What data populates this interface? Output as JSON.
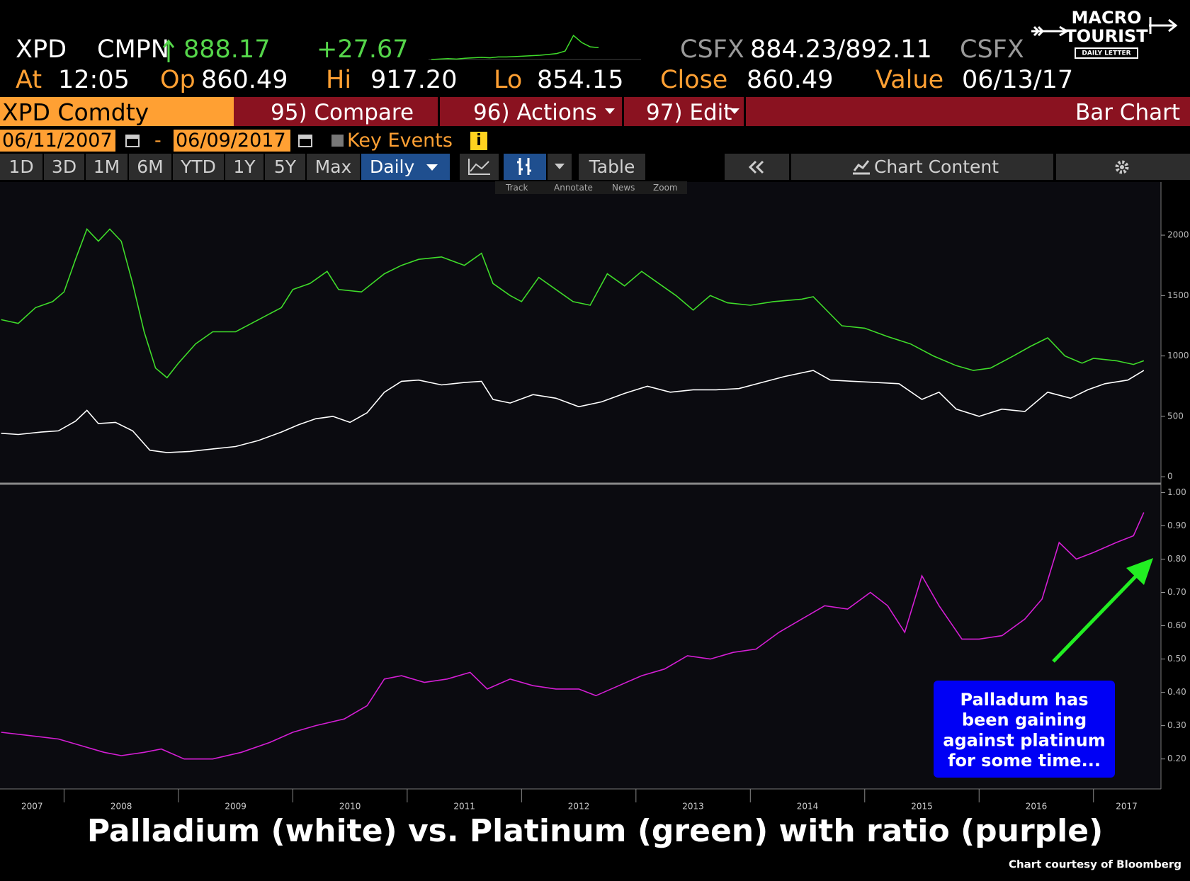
{
  "header": {
    "ticker": "XPD",
    "source": "CMPN",
    "last": "888.17",
    "change": "+27.67",
    "bid_source": "CSFX",
    "bid_ask": "884.23/892.11",
    "ask_source": "CSFX",
    "sparkline": [
      860,
      861,
      862,
      861,
      863,
      864,
      865,
      864,
      866,
      866,
      867,
      868,
      869,
      870,
      872,
      874,
      880,
      917,
      900,
      890,
      888
    ],
    "stats": [
      {
        "label": "At",
        "value": "12:05"
      },
      {
        "label": "Op",
        "value": "860.49"
      },
      {
        "label": "Hi",
        "value": "917.20"
      },
      {
        "label": "Lo",
        "value": "854.15"
      },
      {
        "label": "Close",
        "value": "860.49"
      },
      {
        "label": "Value",
        "value": "06/13/17"
      }
    ]
  },
  "logo": {
    "line1": "MACRO",
    "line2": "TOURIST",
    "tagline": "DAILY LETTER"
  },
  "menu": {
    "security": "XPD Comdty",
    "items": [
      "95) Compare",
      "96) Actions",
      "97) Edit"
    ],
    "chart_type": "Bar Chart"
  },
  "dates": {
    "start": "06/11/2007",
    "separator": "-",
    "end": "06/09/2017",
    "key_events": "Key Events",
    "info": "i"
  },
  "toolbar": {
    "ranges": [
      "1D",
      "3D",
      "1M",
      "6M",
      "YTD",
      "1Y",
      "5Y",
      "Max"
    ],
    "frequency": "Daily",
    "table": "Table",
    "chart_content": "Chart Content"
  },
  "tools": [
    "Track",
    "Annotate",
    "News",
    "Zoom"
  ],
  "chart_data": [
    {
      "type": "line",
      "xlim": [
        2007.44,
        2017.59
      ],
      "ylim": [
        -40,
        2440
      ],
      "yticks": [
        0,
        500,
        1000,
        1500,
        2000
      ],
      "series": [
        {
          "color": "#3fdc2a",
          "x": [
            2007.45,
            2007.6,
            2007.75,
            2007.9,
            2008.0,
            2008.1,
            2008.2,
            2008.3,
            2008.4,
            2008.5,
            2008.6,
            2008.7,
            2008.8,
            2008.9,
            2009.0,
            2009.15,
            2009.3,
            2009.5,
            2009.7,
            2009.9,
            2010.0,
            2010.15,
            2010.3,
            2010.4,
            2010.6,
            2010.8,
            2010.95,
            2011.1,
            2011.3,
            2011.5,
            2011.65,
            2011.75,
            2011.9,
            2012.0,
            2012.15,
            2012.3,
            2012.45,
            2012.6,
            2012.75,
            2012.9,
            2013.05,
            2013.2,
            2013.35,
            2013.5,
            2013.65,
            2013.8,
            2014.0,
            2014.2,
            2014.45,
            2014.55,
            2014.8,
            2015.0,
            2015.2,
            2015.4,
            2015.6,
            2015.8,
            2015.95,
            2016.1,
            2016.3,
            2016.45,
            2016.6,
            2016.75,
            2016.9,
            2017.0,
            2017.2,
            2017.35,
            2017.44
          ],
          "values": [
            1300,
            1270,
            1400,
            1450,
            1530,
            1800,
            2050,
            1950,
            2050,
            1950,
            1600,
            1200,
            900,
            820,
            940,
            1100,
            1200,
            1200,
            1300,
            1400,
            1550,
            1600,
            1700,
            1550,
            1530,
            1680,
            1750,
            1800,
            1820,
            1750,
            1850,
            1600,
            1500,
            1450,
            1650,
            1550,
            1450,
            1420,
            1680,
            1580,
            1700,
            1600,
            1500,
            1380,
            1500,
            1440,
            1420,
            1450,
            1470,
            1490,
            1250,
            1230,
            1160,
            1100,
            1000,
            920,
            880,
            900,
            1000,
            1080,
            1150,
            1000,
            940,
            980,
            960,
            930,
            960
          ]
        },
        {
          "color": "#ffffff",
          "x": [
            2007.45,
            2007.6,
            2007.8,
            2007.95,
            2008.1,
            2008.2,
            2008.3,
            2008.45,
            2008.6,
            2008.75,
            2008.9,
            2009.1,
            2009.3,
            2009.5,
            2009.7,
            2009.9,
            2010.05,
            2010.2,
            2010.35,
            2010.5,
            2010.65,
            2010.8,
            2010.95,
            2011.1,
            2011.3,
            2011.5,
            2011.65,
            2011.75,
            2011.9,
            2012.1,
            2012.3,
            2012.5,
            2012.7,
            2012.9,
            2013.1,
            2013.3,
            2013.5,
            2013.7,
            2013.9,
            2014.1,
            2014.3,
            2014.55,
            2014.7,
            2014.9,
            2015.1,
            2015.3,
            2015.5,
            2015.65,
            2015.8,
            2016.0,
            2016.2,
            2016.4,
            2016.6,
            2016.8,
            2016.95,
            2017.1,
            2017.3,
            2017.44
          ],
          "values": [
            360,
            350,
            370,
            380,
            460,
            550,
            440,
            450,
            380,
            220,
            200,
            210,
            230,
            250,
            300,
            370,
            430,
            480,
            500,
            450,
            530,
            700,
            790,
            800,
            760,
            780,
            790,
            640,
            610,
            680,
            650,
            580,
            620,
            690,
            750,
            700,
            720,
            720,
            730,
            780,
            830,
            880,
            800,
            790,
            780,
            770,
            640,
            700,
            560,
            500,
            560,
            540,
            700,
            650,
            720,
            770,
            800,
            880
          ]
        }
      ]
    },
    {
      "type": "line",
      "xlim": [
        2007.44,
        2017.59
      ],
      "ylim": [
        0.11,
        1.02
      ],
      "yticks": [
        {
          "value": 0.2,
          "label": "0.20"
        },
        {
          "value": 0.3,
          "label": "0.30"
        },
        {
          "value": 0.4,
          "label": "0.40"
        },
        {
          "value": 0.5,
          "label": "0.50"
        },
        {
          "value": 0.6,
          "label": "0.60"
        },
        {
          "value": 0.7,
          "label": "0.70"
        },
        {
          "value": 0.8,
          "label": "0.80"
        },
        {
          "value": 0.9,
          "label": "0.90"
        },
        {
          "value": 1.0,
          "label": "1.00"
        }
      ],
      "xticks": [
        {
          "value": 2007.72,
          "label": "2007"
        },
        {
          "value": 2008.5,
          "label": "2008"
        },
        {
          "value": 2009.5,
          "label": "2009"
        },
        {
          "value": 2010.5,
          "label": "2010"
        },
        {
          "value": 2011.5,
          "label": "2011"
        },
        {
          "value": 2012.5,
          "label": "2012"
        },
        {
          "value": 2013.5,
          "label": "2013"
        },
        {
          "value": 2014.5,
          "label": "2014"
        },
        {
          "value": 2015.5,
          "label": "2015"
        },
        {
          "value": 2016.5,
          "label": "2016"
        },
        {
          "value": 2017.29,
          "label": "2017"
        }
      ],
      "xseparators": [
        2008,
        2009,
        2010,
        2011,
        2012,
        2013,
        2014,
        2015,
        2016,
        2017
      ],
      "series": [
        {
          "color": "#d41ed4",
          "x": [
            2007.45,
            2007.7,
            2007.95,
            2008.15,
            2008.35,
            2008.5,
            2008.7,
            2008.85,
            2009.05,
            2009.3,
            2009.55,
            2009.8,
            2010.0,
            2010.2,
            2010.45,
            2010.65,
            2010.8,
            2010.95,
            2011.15,
            2011.35,
            2011.55,
            2011.7,
            2011.9,
            2012.1,
            2012.3,
            2012.5,
            2012.65,
            2012.85,
            2013.05,
            2013.25,
            2013.45,
            2013.65,
            2013.85,
            2014.05,
            2014.25,
            2014.45,
            2014.65,
            2014.85,
            2015.05,
            2015.2,
            2015.35,
            2015.5,
            2015.65,
            2015.85,
            2016.0,
            2016.2,
            2016.4,
            2016.55,
            2016.7,
            2016.85,
            2017.0,
            2017.2,
            2017.35,
            2017.44
          ],
          "values": [
            0.28,
            0.27,
            0.26,
            0.24,
            0.22,
            0.21,
            0.22,
            0.23,
            0.2,
            0.2,
            0.22,
            0.25,
            0.28,
            0.3,
            0.32,
            0.36,
            0.44,
            0.45,
            0.43,
            0.44,
            0.46,
            0.41,
            0.44,
            0.42,
            0.41,
            0.41,
            0.39,
            0.42,
            0.45,
            0.47,
            0.51,
            0.5,
            0.52,
            0.53,
            0.58,
            0.62,
            0.66,
            0.65,
            0.7,
            0.66,
            0.58,
            0.75,
            0.66,
            0.56,
            0.56,
            0.57,
            0.62,
            0.68,
            0.85,
            0.8,
            0.82,
            0.85,
            0.87,
            0.94
          ]
        }
      ],
      "annotation": [
        "Palladum has",
        "been gaining",
        "against platinum",
        "for some time..."
      ]
    }
  ],
  "footer": {
    "title": "Palladium (white) vs. Platinum (green) with ratio (purple)",
    "credit": "Chart courtesy of Bloomberg"
  }
}
